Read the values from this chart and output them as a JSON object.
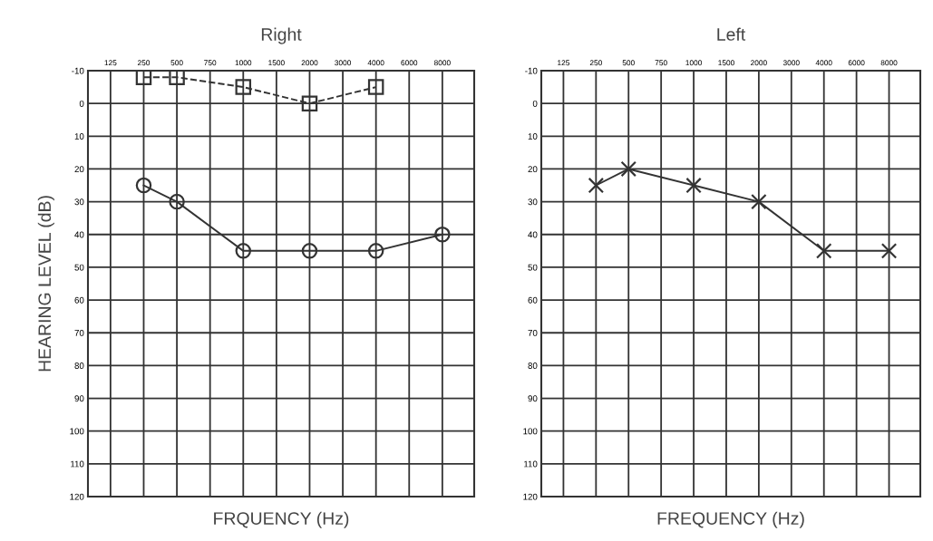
{
  "chart_data": [
    {
      "type": "line",
      "title": "Right",
      "xlabel": "FRQUENCY (Hz)",
      "ylabel": "HEARING LEVEL (dB)",
      "categories": [
        "125",
        "250",
        "500",
        "750",
        "1000",
        "1500",
        "2000",
        "3000",
        "4000",
        "6000",
        "8000"
      ],
      "ylim": [
        120,
        -10
      ],
      "yticks": [
        -10,
        0,
        10,
        20,
        30,
        40,
        50,
        60,
        70,
        80,
        90,
        100,
        110,
        120
      ],
      "grid": true,
      "series": [
        {
          "color": "#333333",
          "marker": "circle",
          "line_style": "solid",
          "values": [
            null,
            25,
            30,
            null,
            45,
            null,
            45,
            null,
            45,
            null,
            40
          ]
        },
        {
          "color": "#333333",
          "marker": "square",
          "line_style": "dashed",
          "values": [
            null,
            -8,
            -8,
            null,
            -5,
            null,
            0,
            null,
            -5,
            null,
            null
          ]
        }
      ]
    },
    {
      "type": "line",
      "title": "Left",
      "xlabel": "FREQUENCY (Hz)",
      "categories": [
        "125",
        "250",
        "500",
        "750",
        "1000",
        "1500",
        "2000",
        "3000",
        "4000",
        "6000",
        "8000"
      ],
      "ylim": [
        120,
        -10
      ],
      "yticks": [
        -10,
        0,
        10,
        20,
        30,
        40,
        50,
        60,
        70,
        80,
        90,
        100,
        110,
        120
      ],
      "grid": true,
      "series": [
        {
          "color": "#333333",
          "marker": "cross",
          "line_style": "solid",
          "values": [
            null,
            25,
            20,
            null,
            25,
            null,
            30,
            null,
            45,
            null,
            45
          ]
        }
      ]
    }
  ]
}
